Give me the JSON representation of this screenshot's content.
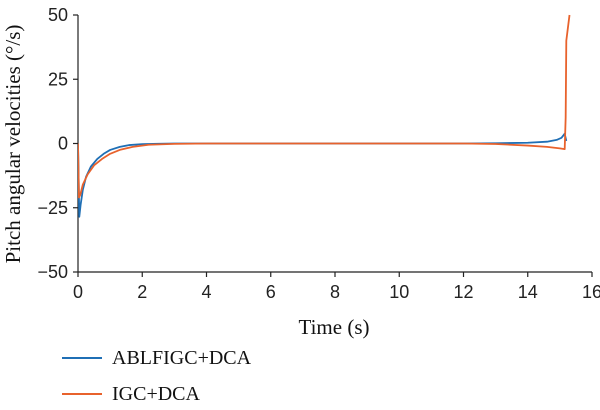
{
  "chart_data": {
    "type": "line",
    "xlabel": "Time (s)",
    "ylabel": "Pitch angular velocities (°/s)",
    "xlim": [
      0,
      16
    ],
    "ylim": [
      -50,
      50
    ],
    "xticks": [
      "0",
      "2",
      "4",
      "6",
      "8",
      "10",
      "12",
      "14",
      "16"
    ],
    "yticks": [
      "50",
      "25",
      "0",
      "−25",
      "−50"
    ],
    "grid": false,
    "legend_position": "bottom-left, below plot",
    "series": [
      {
        "name": "ABLFIGC+DCA",
        "color": "#1f6fb5",
        "x": [
          0,
          0.04,
          0.08,
          0.15,
          0.25,
          0.4,
          0.6,
          0.8,
          1.0,
          1.3,
          1.6,
          2.0,
          2.5,
          3,
          4,
          6,
          8,
          10,
          12,
          13,
          14,
          14.6,
          14.9,
          15.05,
          15.15,
          15.2
        ],
        "y": [
          0,
          -28.5,
          -24,
          -18,
          -13,
          -9,
          -6,
          -4,
          -2.5,
          -1.3,
          -0.6,
          -0.25,
          -0.1,
          0,
          0,
          0,
          0,
          0,
          0,
          0.1,
          0.3,
          0.7,
          1.4,
          2.2,
          3.8,
          1.0
        ]
      },
      {
        "name": "IGC+DCA",
        "color": "#e8622c",
        "x": [
          0,
          0.03,
          0.07,
          0.15,
          0.3,
          0.5,
          0.75,
          1.0,
          1.3,
          1.7,
          2.2,
          3.0,
          4.0,
          6,
          8,
          10,
          12,
          13,
          14,
          14.6,
          15.0,
          15.15,
          15.18,
          15.2,
          15.3
        ],
        "y": [
          0,
          -21,
          -20,
          -16,
          -12,
          -8.5,
          -6,
          -4,
          -2.5,
          -1.3,
          -0.5,
          -0.15,
          0,
          0,
          0,
          0,
          0,
          -0.2,
          -0.8,
          -1.3,
          -1.9,
          -2.2,
          10,
          40,
          50
        ]
      }
    ]
  }
}
